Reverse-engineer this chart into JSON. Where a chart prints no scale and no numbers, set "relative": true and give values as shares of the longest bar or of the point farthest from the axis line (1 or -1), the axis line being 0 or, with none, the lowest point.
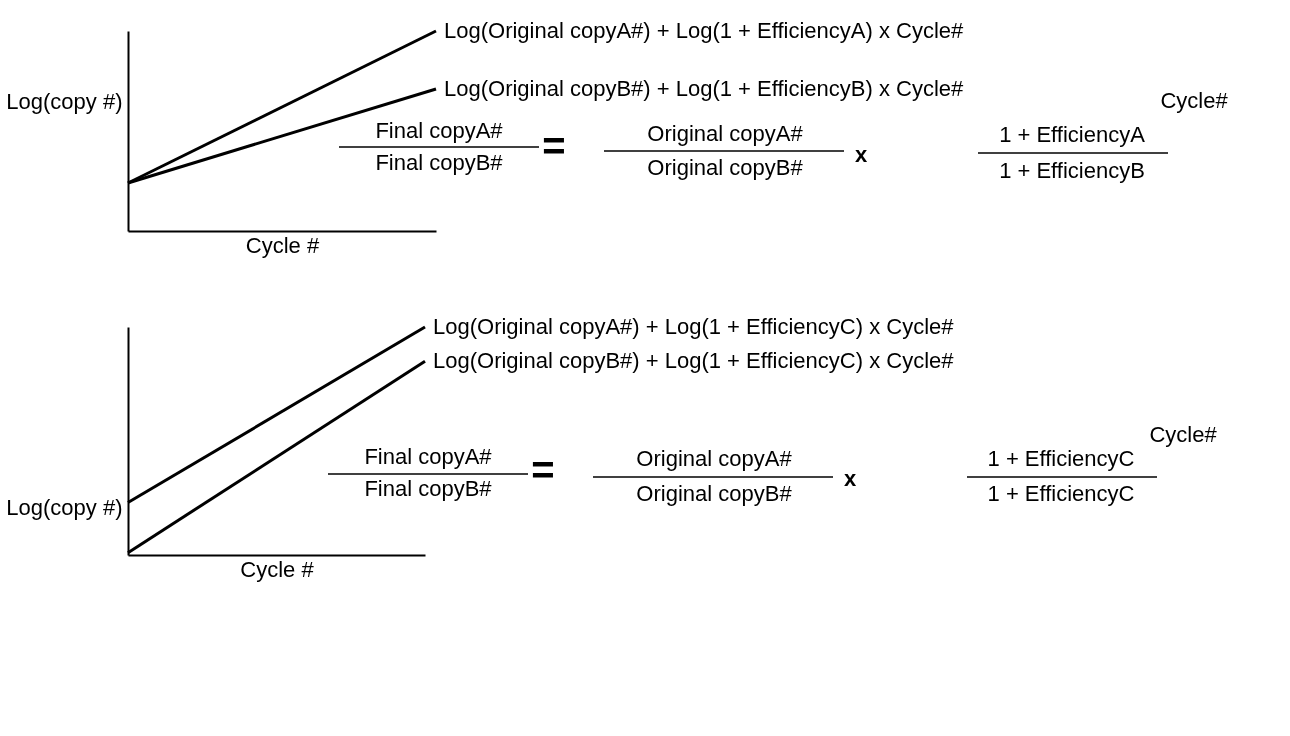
{
  "chart_data": [
    {
      "type": "line",
      "relative": true,
      "categories": [
        null,
        null
      ],
      "xlabel": "Cycle #",
      "ylabel": "Log(copy #)",
      "series": [
        {
          "name": "Log(Original copyA#) + Log(1 + EfficiencyA) x Cycle#",
          "color": "#000000",
          "values": [
            0.24,
            1
          ]
        },
        {
          "name": "Log(Original copyB#) + Log(1 + EfficiencyB) x Cycle#",
          "color": "#000000",
          "values": [
            0.24,
            0.71
          ]
        }
      ],
      "annotations": [
        "Final copyA#",
        "Final copyB#",
        "=",
        "Original copyA#",
        "Original copyB#",
        "x",
        "1 + EfficiencyA",
        "1 + EfficiencyB",
        "Cycle#"
      ]
    },
    {
      "type": "line",
      "relative": true,
      "categories": [
        null,
        null
      ],
      "xlabel": "Cycle #",
      "ylabel": "Log(copy #)",
      "series": [
        {
          "name": "Log(Original copyA#) + Log(1 + EfficiencyC) x Cycle#",
          "color": "#000000",
          "values": [
            0.23,
            1
          ]
        },
        {
          "name": "Log(Original copyB#) + Log(1 + EfficiencyC) x Cycle#",
          "color": "#000000",
          "values": [
            0.01,
            0.85
          ]
        }
      ],
      "annotations": [
        "Final copyA#",
        "Final copyB#",
        "=",
        "Original copyA#",
        "Original copyB#",
        "x",
        "1 + EfficiencyC",
        "1 + EfficiencyC",
        "Cycle#"
      ]
    }
  ]
}
